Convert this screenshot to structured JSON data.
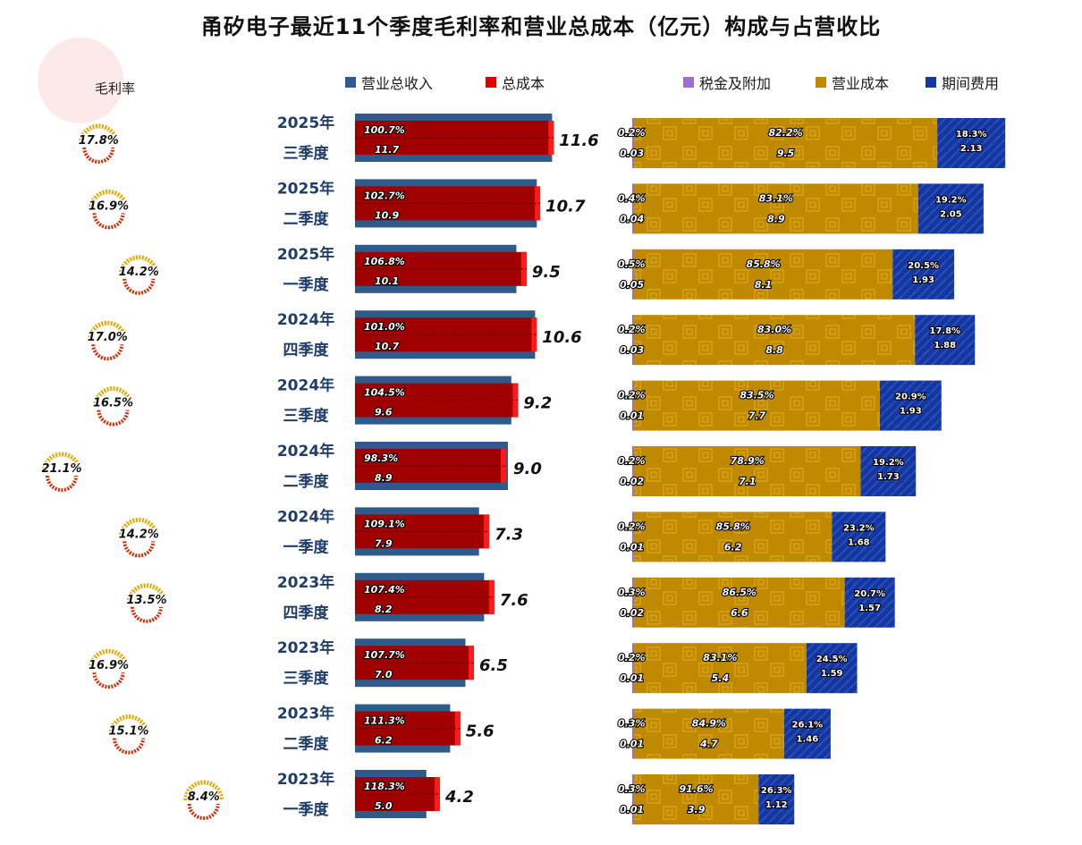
{
  "title": "甬矽电子最近11个季度毛利率和营业总成本（亿元）构成与占营收比",
  "legend": {
    "revenue": "营业总收入",
    "total_cost": "总成本",
    "tax": "税金及附加",
    "op_cost": "营业成本",
    "period_exp": "期间费用",
    "gross_margin": "毛利率"
  },
  "colors": {
    "revenue": "#2f5a8c",
    "total_cost": "#a00000",
    "total_cost_edge": "#ff1a1a",
    "tax": "#9b6fd0",
    "op_cost": "#c08a00",
    "period_exp": "#1537a0",
    "margin_arc": "#e6a800"
  },
  "chart_data": {
    "type": "bar",
    "quarters": [
      {
        "year": "2025年",
        "quarter": "三季度",
        "revenue": 11.6,
        "total_cost": 11.7,
        "cost_ratio": "100.7%",
        "gross_margin": 17.8,
        "tax_pct": "0.2%",
        "tax": "0.03",
        "op_pct": "82.2%",
        "op": "9.5",
        "exp_pct": "18.3%",
        "exp": "2.13"
      },
      {
        "year": "2025年",
        "quarter": "二季度",
        "revenue": 10.7,
        "total_cost": 10.9,
        "cost_ratio": "102.7%",
        "gross_margin": 16.9,
        "tax_pct": "0.4%",
        "tax": "0.04",
        "op_pct": "83.1%",
        "op": "8.9",
        "exp_pct": "19.2%",
        "exp": "2.05"
      },
      {
        "year": "2025年",
        "quarter": "一季度",
        "revenue": 9.5,
        "total_cost": 10.1,
        "cost_ratio": "106.8%",
        "gross_margin": 14.2,
        "tax_pct": "0.5%",
        "tax": "0.05",
        "op_pct": "85.8%",
        "op": "8.1",
        "exp_pct": "20.5%",
        "exp": "1.93"
      },
      {
        "year": "2024年",
        "quarter": "四季度",
        "revenue": 10.6,
        "total_cost": 10.7,
        "cost_ratio": "101.0%",
        "gross_margin": 17.0,
        "tax_pct": "0.2%",
        "tax": "0.03",
        "op_pct": "83.0%",
        "op": "8.8",
        "exp_pct": "17.8%",
        "exp": "1.88"
      },
      {
        "year": "2024年",
        "quarter": "三季度",
        "revenue": 9.2,
        "total_cost": 9.6,
        "cost_ratio": "104.5%",
        "gross_margin": 16.5,
        "tax_pct": "0.2%",
        "tax": "0.01",
        "op_pct": "83.5%",
        "op": "7.7",
        "exp_pct": "20.9%",
        "exp": "1.93"
      },
      {
        "year": "2024年",
        "quarter": "二季度",
        "revenue": 9.0,
        "total_cost": 8.9,
        "cost_ratio": "98.3%",
        "gross_margin": 21.1,
        "tax_pct": "0.2%",
        "tax": "0.02",
        "op_pct": "78.9%",
        "op": "7.1",
        "exp_pct": "19.2%",
        "exp": "1.73"
      },
      {
        "year": "2024年",
        "quarter": "一季度",
        "revenue": 7.3,
        "total_cost": 7.9,
        "cost_ratio": "109.1%",
        "gross_margin": 14.2,
        "tax_pct": "0.2%",
        "tax": "0.01",
        "op_pct": "85.8%",
        "op": "6.2",
        "exp_pct": "23.2%",
        "exp": "1.68"
      },
      {
        "year": "2023年",
        "quarter": "四季度",
        "revenue": 7.6,
        "total_cost": 8.2,
        "cost_ratio": "107.4%",
        "gross_margin": 13.5,
        "tax_pct": "0.3%",
        "tax": "0.02",
        "op_pct": "86.5%",
        "op": "6.6",
        "exp_pct": "20.7%",
        "exp": "1.57"
      },
      {
        "year": "2023年",
        "quarter": "三季度",
        "revenue": 6.5,
        "total_cost": 7.0,
        "cost_ratio": "107.7%",
        "gross_margin": 16.9,
        "tax_pct": "0.2%",
        "tax": "0.01",
        "op_pct": "83.1%",
        "op": "5.4",
        "exp_pct": "24.5%",
        "exp": "1.59"
      },
      {
        "year": "2023年",
        "quarter": "二季度",
        "revenue": 5.6,
        "total_cost": 6.2,
        "cost_ratio": "111.3%",
        "gross_margin": 15.1,
        "tax_pct": "0.3%",
        "tax": "0.01",
        "op_pct": "84.9%",
        "op": "4.7",
        "exp_pct": "26.1%",
        "exp": "1.46"
      },
      {
        "year": "2023年",
        "quarter": "一季度",
        "revenue": 4.2,
        "total_cost": 5.0,
        "cost_ratio": "118.3%",
        "gross_margin": 8.4,
        "tax_pct": "0.3%",
        "tax": "0.01",
        "op_pct": "91.6%",
        "op": "3.9",
        "exp_pct": "26.3%",
        "exp": "1.12"
      }
    ]
  }
}
